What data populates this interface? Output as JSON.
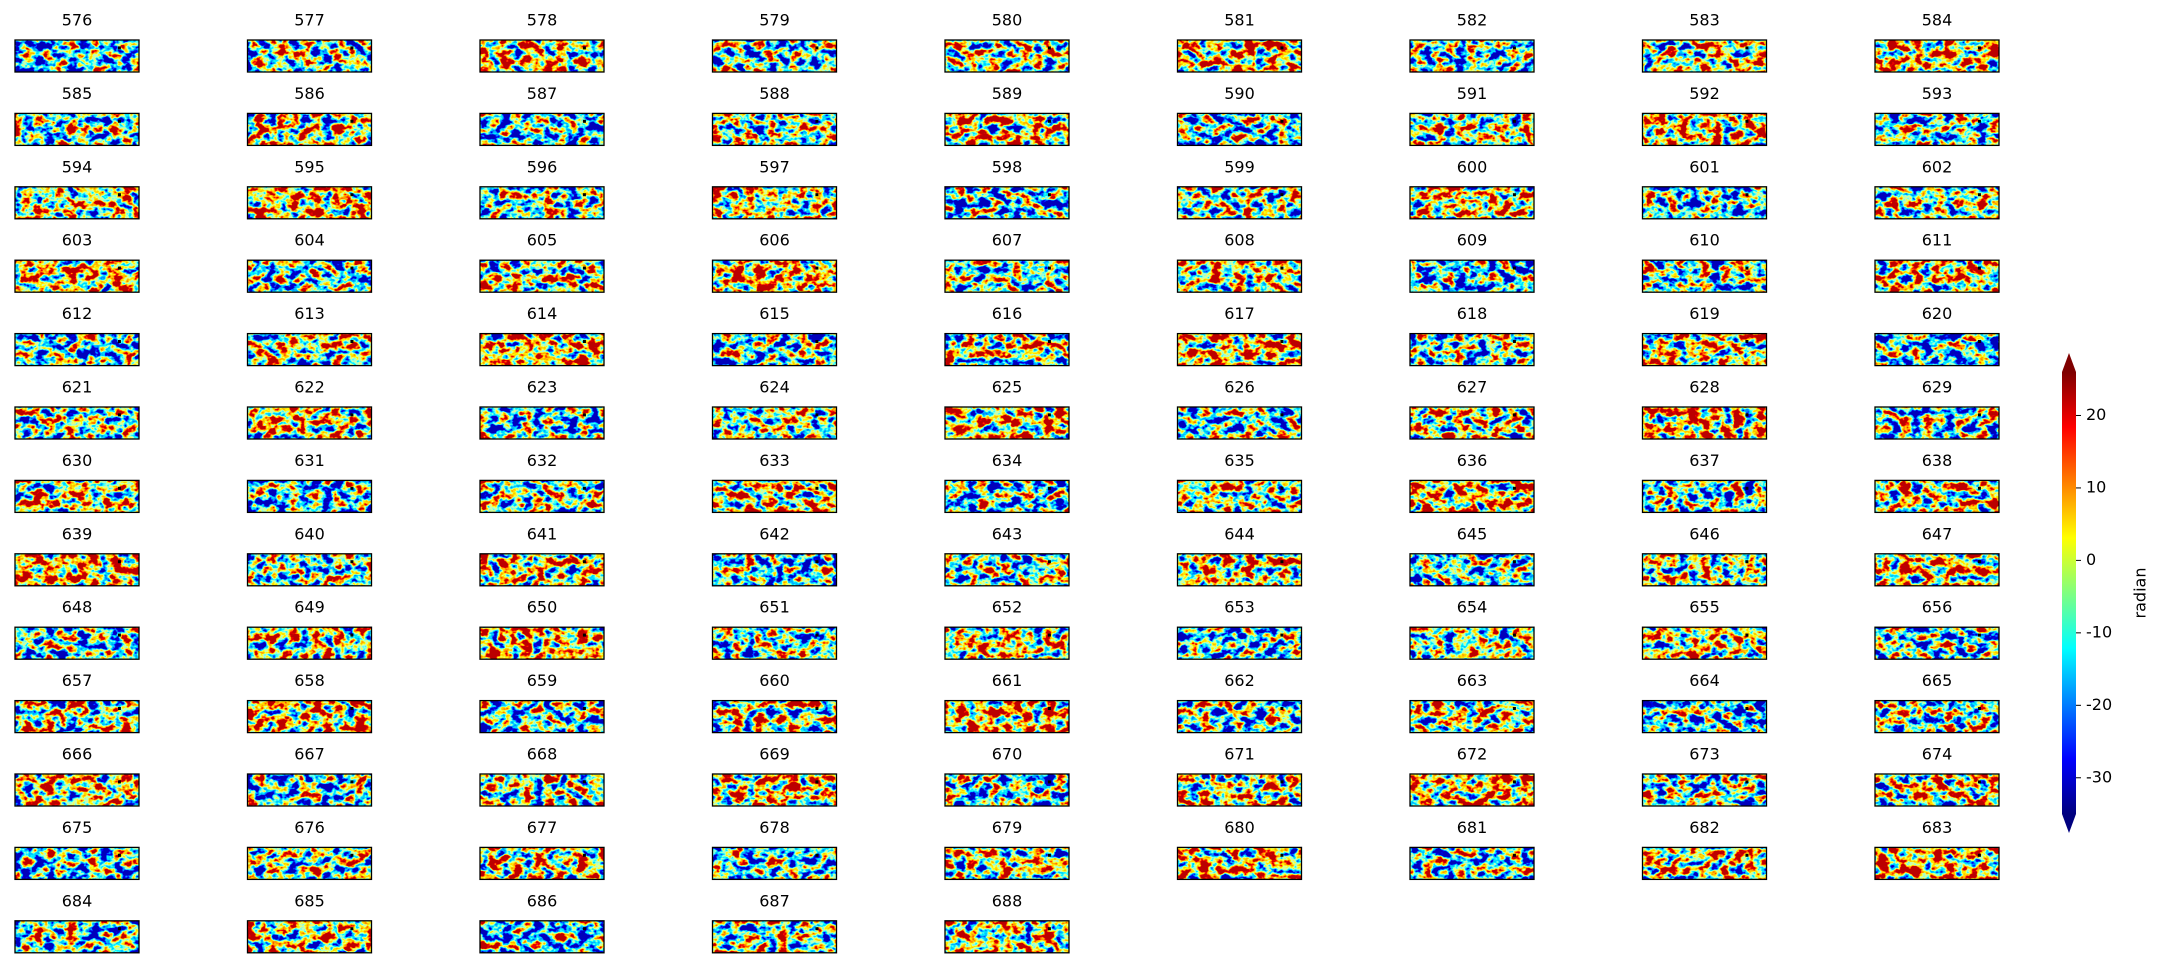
{
  "chart_data": {
    "type": "heatmap-grid",
    "titles": [
      "576",
      "577",
      "578",
      "579",
      "580",
      "581",
      "582",
      "583",
      "584",
      "585",
      "586",
      "587",
      "588",
      "589",
      "590",
      "591",
      "592",
      "593",
      "594",
      "595",
      "596",
      "597",
      "598",
      "599",
      "600",
      "601",
      "602",
      "603",
      "604",
      "605",
      "606",
      "607",
      "608",
      "609",
      "610",
      "611",
      "612",
      "613",
      "614",
      "615",
      "616",
      "617",
      "618",
      "619",
      "620",
      "621",
      "622",
      "623",
      "624",
      "625",
      "626",
      "627",
      "628",
      "629",
      "630",
      "631",
      "632",
      "633",
      "634",
      "635",
      "636",
      "637",
      "638",
      "639",
      "640",
      "641",
      "642",
      "643",
      "644",
      "645",
      "646",
      "647",
      "648",
      "649",
      "650",
      "651",
      "652",
      "653",
      "654",
      "655",
      "656",
      "657",
      "658",
      "659",
      "660",
      "661",
      "662",
      "663",
      "664",
      "665",
      "666",
      "667",
      "668",
      "669",
      "670",
      "671",
      "672",
      "673",
      "674",
      "675",
      "676",
      "677",
      "678",
      "679",
      "680",
      "681",
      "682",
      "683",
      "684",
      "685",
      "686",
      "687",
      "688"
    ],
    "colorbar": {
      "label": "radian",
      "colormap": "jet",
      "clim": [
        -35,
        26
      ],
      "ticks": [
        -30,
        -20,
        -10,
        0,
        10,
        20
      ]
    }
  }
}
